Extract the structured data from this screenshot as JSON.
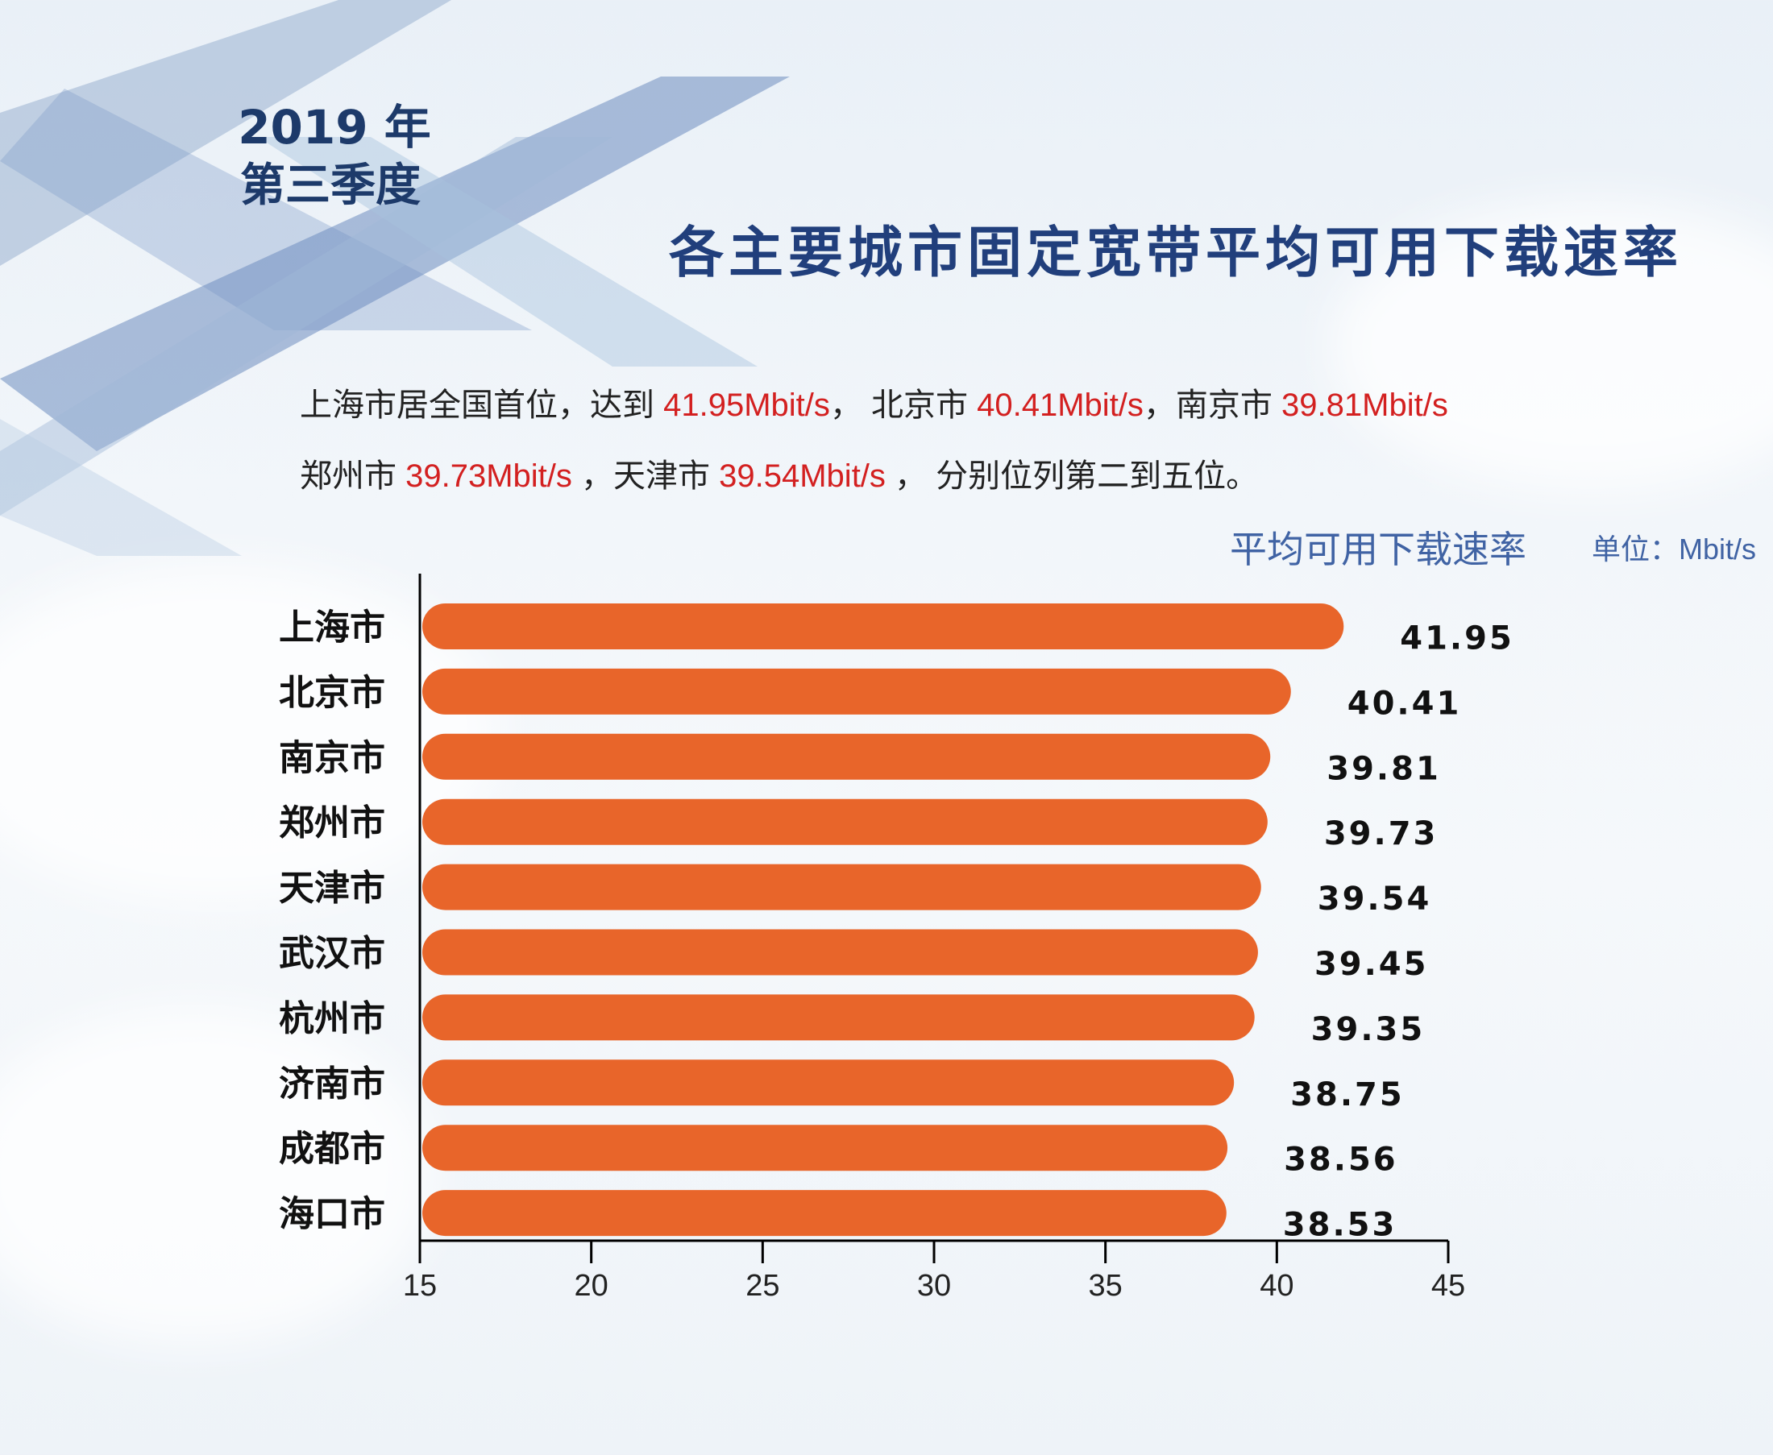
{
  "header": {
    "year": "2019 年",
    "season": "第三季度",
    "title": "各主要城市固定宽带平均可用下载速率"
  },
  "summary": {
    "l1_a": "上海市居全国首位，达到 ",
    "l1_b": "41.95Mbit/s",
    "l1_c": "， 北京市 ",
    "l1_d": "40.41Mbit/s",
    "l1_e": "，南京市 ",
    "l1_f": "39.81Mbit/s",
    "l2_a": "郑州市 ",
    "l2_b": "39.73Mbit/s",
    "l2_c": " ，天津市 ",
    "l2_d": "39.54Mbit/s",
    "l2_e": " ， 分别位列第二到五位。"
  },
  "chart_labels": {
    "subtitle": "平均可用下载速率",
    "unit": "单位：Mbit/s"
  },
  "colors": {
    "bar": "#e8652a",
    "title": "#213f7c",
    "highlight": "#d32020",
    "subtitle": "#4063a4"
  },
  "chart_data": {
    "type": "bar",
    "orientation": "horizontal",
    "categories": [
      "上海市",
      "北京市",
      "南京市",
      "郑州市",
      "天津市",
      "武汉市",
      "杭州市",
      "济南市",
      "成都市",
      "海口市"
    ],
    "values": [
      41.95,
      40.41,
      39.81,
      39.73,
      39.54,
      39.45,
      39.35,
      38.75,
      38.56,
      38.53
    ],
    "value_labels": [
      "41.95",
      "40.41",
      "39.81",
      "39.73",
      "39.54",
      "39.45",
      "39.35",
      "38.75",
      "38.56",
      "38.53"
    ],
    "xlim": [
      15,
      45
    ],
    "xticks": [
      15,
      20,
      25,
      30,
      35,
      40,
      45
    ],
    "xtick_labels": [
      "15",
      "20",
      "25",
      "30",
      "35",
      "40",
      "45"
    ],
    "grid": false
  }
}
